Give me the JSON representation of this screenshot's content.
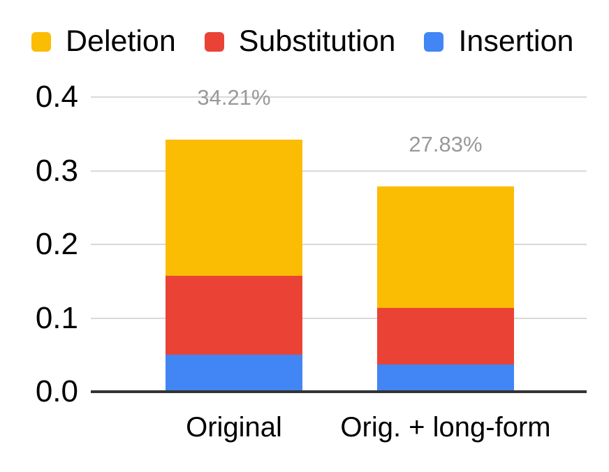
{
  "chart": {
    "background": "#ffffff",
    "legend": {
      "items": [
        {
          "label": "Deletion",
          "color": "#FBBC04",
          "swatch_icon": "square-swatch-icon"
        },
        {
          "label": "Substitution",
          "color": "#EA4335",
          "swatch_icon": "square-swatch-icon"
        },
        {
          "label": "Insertion",
          "color": "#4285F4",
          "swatch_icon": "square-swatch-icon"
        }
      ]
    },
    "axis": {
      "gridline_color": "#d9d9d9",
      "baseline_color": "#333333",
      "tick_text_color": "#000000",
      "y_ticks": [
        {
          "label": "0.0",
          "value": 0.0
        },
        {
          "label": "0.1",
          "value": 0.1
        },
        {
          "label": "0.2",
          "value": 0.2
        },
        {
          "label": "0.3",
          "value": 0.3
        },
        {
          "label": "0.4",
          "value": 0.4
        }
      ]
    },
    "data_label_color": "#999999"
  },
  "chart_data": {
    "type": "bar",
    "stacked": true,
    "title": "",
    "xlabel": "",
    "ylabel": "",
    "categories": [
      "Original",
      "Orig. + long-form"
    ],
    "series": [
      {
        "name": "Insertion",
        "color": "#4285F4",
        "values": [
          0.05,
          0.0369
        ]
      },
      {
        "name": "Substitution",
        "color": "#EA4335",
        "values": [
          0.1075,
          0.0767
        ]
      },
      {
        "name": "Deletion",
        "color": "#FBBC04",
        "values": [
          0.1846,
          0.1647
        ]
      }
    ],
    "totals": [
      0.3421,
      0.2783
    ],
    "total_labels": [
      "34.21%",
      "27.83%"
    ],
    "ylim": [
      0,
      0.4
    ],
    "grid": true,
    "legend_position": "top"
  }
}
